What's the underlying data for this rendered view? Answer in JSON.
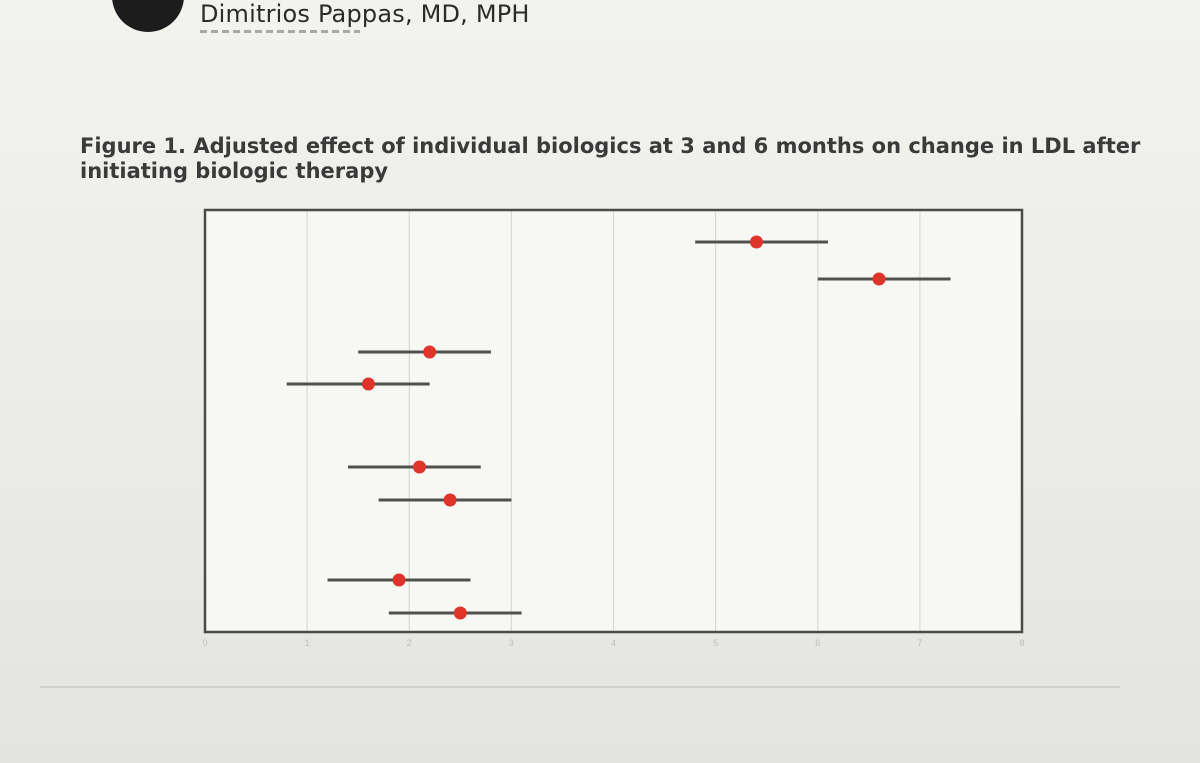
{
  "slide": {
    "speaker_name": "Dimitrios Pappas, MD, MPH"
  },
  "figure": {
    "title": "Figure 1. Adjusted effect of individual biologics at 3 and 6 months on change in LDL after initiating biologic therapy"
  },
  "colors": {
    "point": "#e0342a",
    "ci_line": "#505050",
    "frame": "#4a4a4a",
    "grid": "#d9d9d6"
  },
  "chart_data": {
    "type": "scatter",
    "subtype": "forest-plot",
    "title": "Figure 1. Adjusted effect of individual biologics at 3 and 6 months on change in LDL after initiating biologic therapy",
    "xlabel": "",
    "ylabel": "",
    "xlim": [
      0,
      8
    ],
    "grid": true,
    "legend": "none",
    "rows": [
      {
        "label": "",
        "estimate": 5.4,
        "ci_low": 4.8,
        "ci_high": 6.1
      },
      {
        "label": "",
        "estimate": 6.6,
        "ci_low": 6.0,
        "ci_high": 7.3
      },
      {
        "label": "",
        "estimate": 2.2,
        "ci_low": 1.5,
        "ci_high": 2.8
      },
      {
        "label": "",
        "estimate": 1.6,
        "ci_low": 0.8,
        "ci_high": 2.2
      },
      {
        "label": "",
        "estimate": 2.1,
        "ci_low": 1.4,
        "ci_high": 2.7
      },
      {
        "label": "",
        "estimate": 2.4,
        "ci_low": 1.7,
        "ci_high": 3.0
      },
      {
        "label": "",
        "estimate": 1.9,
        "ci_low": 1.2,
        "ci_high": 2.6
      },
      {
        "label": "",
        "estimate": 2.5,
        "ci_low": 1.8,
        "ci_high": 3.1
      }
    ]
  }
}
